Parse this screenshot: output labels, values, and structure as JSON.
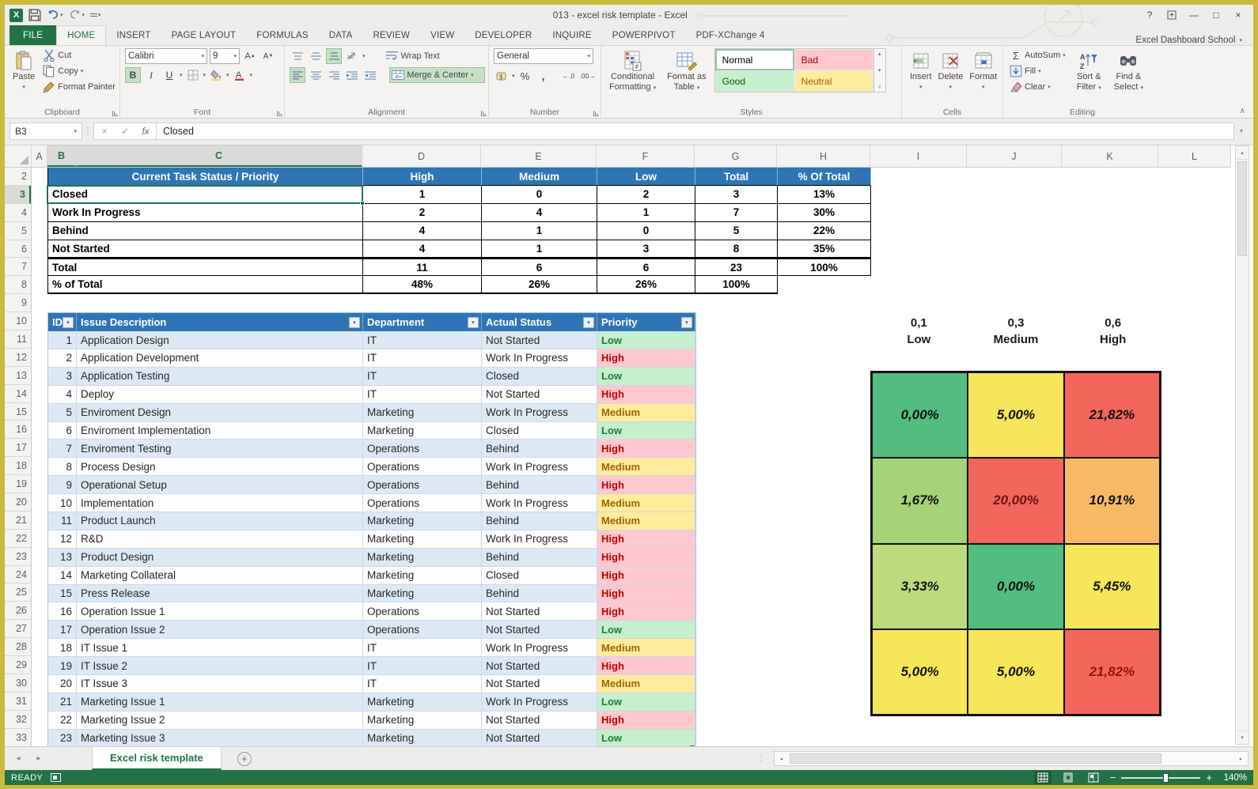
{
  "window": {
    "title": "013 - excel risk template - Excel",
    "account": "Excel Dashboard School"
  },
  "glyphs": {
    "help": "?",
    "minimize": "—",
    "maximize": "□",
    "close": "×",
    "dropdown": "▾",
    "up": "▴",
    "down": "▾",
    "left": "◂",
    "right": "▸",
    "cancel": "×",
    "enter": "✓",
    "fx": "fx",
    "dots": "⋮",
    "sigma": "Σ",
    "percent": "%",
    "comma": ",",
    "inc_decimal": "←.0",
    "dec_decimal": ".00→",
    "bold": "B",
    "italic": "I",
    "underline": "U",
    "grow_font": "A▲",
    "shrink_font": "A▼",
    "collapse_ribbon": "∧",
    "add_sheet": "+",
    "zoom_minus": "−",
    "zoom_plus": "+",
    "grip": "⋮⋮"
  },
  "ribbon_tabs": [
    "FILE",
    "HOME",
    "INSERT",
    "PAGE LAYOUT",
    "FORMULAS",
    "DATA",
    "REVIEW",
    "VIEW",
    "DEVELOPER",
    "INQUIRE",
    "POWERPIVOT",
    "PDF-XChange 4"
  ],
  "active_tab": "HOME",
  "ribbon": {
    "clipboard": {
      "group": "Clipboard",
      "paste": "Paste",
      "cut": "Cut",
      "copy": "Copy",
      "format_painter": "Format Painter"
    },
    "font": {
      "group": "Font",
      "family": "Calibri",
      "size": "9"
    },
    "alignment": {
      "group": "Alignment",
      "wrap_text": "Wrap Text",
      "merge_center": "Merge & Center"
    },
    "number": {
      "group": "Number",
      "format": "General"
    },
    "styles": {
      "group": "Styles",
      "conditional_line1": "Conditional",
      "conditional_line2": "Formatting",
      "format_table_line1": "Format as",
      "format_table_line2": "Table",
      "gallery": [
        {
          "label": "Normal",
          "bg": "#FFFFFF",
          "fg": "#000000",
          "selected": true
        },
        {
          "label": "Bad",
          "bg": "#FFC7CE",
          "fg": "#9C0006",
          "selected": false
        },
        {
          "label": "Good",
          "bg": "#C6EFCE",
          "fg": "#006100",
          "selected": false
        },
        {
          "label": "Neutral",
          "bg": "#FFEB9C",
          "fg": "#9C6500",
          "selected": false
        }
      ]
    },
    "cells": {
      "group": "Cells",
      "insert": "Insert",
      "delete": "Delete",
      "format": "Format"
    },
    "editing": {
      "group": "Editing",
      "autosum": "AutoSum",
      "fill": "Fill",
      "clear": "Clear",
      "sort_line1": "Sort &",
      "sort_line2": "Filter",
      "find_line1": "Find &",
      "find_line2": "Select"
    }
  },
  "formula_bar": {
    "name_box": "B3",
    "value": "Closed"
  },
  "grid": {
    "columns": [
      "A",
      "B",
      "C",
      "D",
      "E",
      "F",
      "G",
      "H",
      "I",
      "J",
      "K",
      "L"
    ],
    "selected_columns": [
      "B",
      "C"
    ],
    "rows": [
      2,
      3,
      4,
      5,
      6,
      7,
      8,
      9,
      10,
      11,
      12,
      13,
      14,
      15,
      16,
      17,
      18,
      19,
      20,
      21,
      22,
      23,
      24,
      25,
      26,
      27,
      28,
      29,
      30,
      31,
      32,
      33
    ],
    "selected_row": 3
  },
  "status_table": {
    "title": "Current Task Status / Priority",
    "columns": [
      "High",
      "Medium",
      "Low",
      "Total",
      "% Of Total"
    ],
    "rows": [
      {
        "label": "Closed",
        "values": [
          "1",
          "0",
          "2",
          "3",
          "13%"
        ]
      },
      {
        "label": "Work In Progress",
        "values": [
          "2",
          "4",
          "1",
          "7",
          "30%"
        ]
      },
      {
        "label": "Behind",
        "values": [
          "4",
          "1",
          "0",
          "5",
          "22%"
        ]
      },
      {
        "label": "Not Started",
        "values": [
          "4",
          "1",
          "3",
          "8",
          "35%"
        ]
      },
      {
        "label": "Total",
        "values": [
          "11",
          "6",
          "6",
          "23",
          "100%"
        ],
        "total": true
      },
      {
        "label": "% of Total",
        "values": [
          "48%",
          "26%",
          "26%",
          "100%",
          ""
        ],
        "last": true
      }
    ]
  },
  "issue_table": {
    "columns": [
      "ID",
      "Issue Description",
      "Department",
      "Actual Status",
      "Priority"
    ],
    "rows": [
      {
        "id": "1",
        "description": "Application Design",
        "department": "IT",
        "status": "Not Started",
        "priority": "Low"
      },
      {
        "id": "2",
        "description": "Application Development",
        "department": "IT",
        "status": "Work In Progress",
        "priority": "High"
      },
      {
        "id": "3",
        "description": "Application Testing",
        "department": "IT",
        "status": "Closed",
        "priority": "Low"
      },
      {
        "id": "4",
        "description": "Deploy",
        "department": "IT",
        "status": "Not Started",
        "priority": "High"
      },
      {
        "id": "5",
        "description": "Enviroment Design",
        "department": "Marketing",
        "status": "Work In Progress",
        "priority": "Medium"
      },
      {
        "id": "6",
        "description": "Enviroment Implementation",
        "department": "Marketing",
        "status": "Closed",
        "priority": "Low"
      },
      {
        "id": "7",
        "description": "Enviroment Testing",
        "department": "Operations",
        "status": "Behind",
        "priority": "High"
      },
      {
        "id": "8",
        "description": "Process Design",
        "department": "Operations",
        "status": "Work In Progress",
        "priority": "Medium"
      },
      {
        "id": "9",
        "description": "Operational Setup",
        "department": "Operations",
        "status": "Behind",
        "priority": "High"
      },
      {
        "id": "10",
        "description": "Implementation",
        "department": "Operations",
        "status": "Work In Progress",
        "priority": "Medium"
      },
      {
        "id": "11",
        "description": "Product Launch",
        "department": "Marketing",
        "status": "Behind",
        "priority": "Medium"
      },
      {
        "id": "12",
        "description": "R&D",
        "department": "Marketing",
        "status": "Work In Progress",
        "priority": "High"
      },
      {
        "id": "13",
        "description": "Product Design",
        "department": "Marketing",
        "status": "Behind",
        "priority": "High"
      },
      {
        "id": "14",
        "description": "Marketing Collateral",
        "department": "Marketing",
        "status": "Closed",
        "priority": "High"
      },
      {
        "id": "15",
        "description": "Press Release",
        "department": "Marketing",
        "status": "Behind",
        "priority": "High"
      },
      {
        "id": "16",
        "description": "Operation Issue 1",
        "department": "Operations",
        "status": "Not Started",
        "priority": "High"
      },
      {
        "id": "17",
        "description": "Operation Issue 2",
        "department": "Operations",
        "status": "Not Started",
        "priority": "Low"
      },
      {
        "id": "18",
        "description": "IT Issue 1",
        "department": "IT",
        "status": "Work In Progress",
        "priority": "Medium"
      },
      {
        "id": "19",
        "description": "IT Issue 2",
        "department": "IT",
        "status": "Not Started",
        "priority": "High"
      },
      {
        "id": "20",
        "description": "IT Issue 3",
        "department": "IT",
        "status": "Not Started",
        "priority": "Medium"
      },
      {
        "id": "21",
        "description": "Marketing Issue 1",
        "department": "Marketing",
        "status": "Work In Progress",
        "priority": "Low"
      },
      {
        "id": "22",
        "description": "Marketing Issue 2",
        "department": "Marketing",
        "status": "Not Started",
        "priority": "High"
      },
      {
        "id": "23",
        "description": "Marketing Issue 3",
        "department": "Marketing",
        "status": "Not Started",
        "priority": "Low"
      }
    ]
  },
  "priority_styles": {
    "Low": {
      "bg": "#C6EFCE",
      "fg": "#1E7B34"
    },
    "Medium": {
      "bg": "#FFEB9C",
      "fg": "#9C6500"
    },
    "High": {
      "bg": "#FFC7CE",
      "fg": "#C00000"
    }
  },
  "risk_matrix": {
    "column_headers": [
      {
        "value": "0,1",
        "label": "Low"
      },
      {
        "value": "0,3",
        "label": "Medium"
      },
      {
        "value": "0,6",
        "label": "High"
      }
    ],
    "cells": [
      [
        {
          "value": "0,00%",
          "bg": "#52BD7E",
          "fg": "#111111"
        },
        {
          "value": "5,00%",
          "bg": "#F8E65A",
          "fg": "#111111"
        },
        {
          "value": "21,82%",
          "bg": "#F4655C",
          "fg": "#111111"
        }
      ],
      [
        {
          "value": "1,67%",
          "bg": "#A5D377",
          "fg": "#111111"
        },
        {
          "value": "20,00%",
          "bg": "#F4655C",
          "fg": "#6E1205"
        },
        {
          "value": "10,91%",
          "bg": "#F9BA66",
          "fg": "#111111"
        }
      ],
      [
        {
          "value": "3,33%",
          "bg": "#BBDB7D",
          "fg": "#111111"
        },
        {
          "value": "0,00%",
          "bg": "#52BD7E",
          "fg": "#111111"
        },
        {
          "value": "5,45%",
          "bg": "#F8E65A",
          "fg": "#111111"
        }
      ],
      [
        {
          "value": "5,00%",
          "bg": "#F8E65A",
          "fg": "#111111"
        },
        {
          "value": "5,00%",
          "bg": "#F8E65A",
          "fg": "#111111"
        },
        {
          "value": "21,82%",
          "bg": "#F4655C",
          "fg": "#8F1508"
        }
      ]
    ]
  },
  "sheet_bar": {
    "active_tab": "Excel risk template"
  },
  "status_bar": {
    "mode": "READY",
    "zoom": "140%"
  },
  "accent": {
    "green": "#217346",
    "header_blue": "#2E75B6",
    "stripe_blue": "#DCE9F5"
  }
}
